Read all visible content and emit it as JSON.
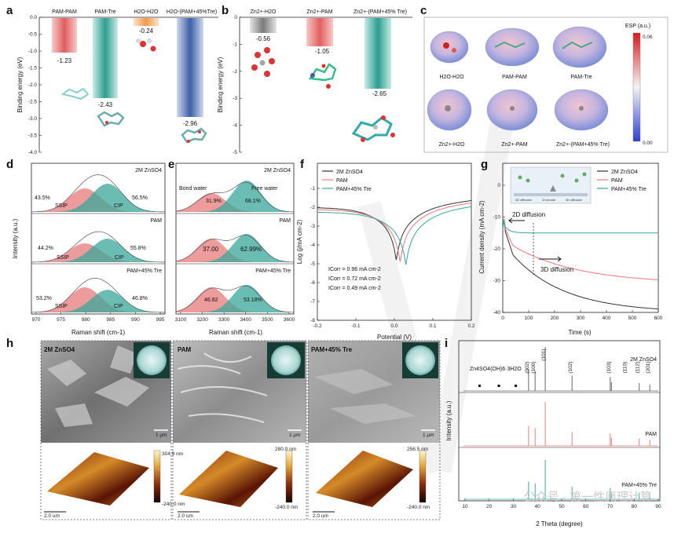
{
  "panel_letters": [
    "a",
    "b",
    "c",
    "d",
    "e",
    "f",
    "g",
    "h",
    "i"
  ],
  "colors": {
    "red": "#e8797b",
    "teal": "#3aa79a",
    "blue": "#3b5fa8",
    "orange": "#f2994a",
    "gray": "#8c8c8c",
    "dark": "#333333"
  },
  "watermark": "公众号 · 第一性原理计算",
  "panel_a": {
    "ylabel": "Binding energy (eV)",
    "yticks": [
      "0.0",
      "-0.5",
      "-1.0",
      "-1.5",
      "-2.0",
      "-2.5",
      "-3.0",
      "-3.5",
      "-4.0"
    ],
    "labels": [
      "PAM-PAM",
      "PAM-Tre",
      "H2O-H2O",
      "H2O-(PAM+45%Tre)"
    ],
    "values": [
      "-1.23",
      "-2.43",
      "-0.24",
      "-2.96"
    ]
  },
  "panel_b": {
    "ylabel": "Binding energy (eV)",
    "yticks": [
      "0",
      "-1",
      "-2",
      "-3",
      "-4",
      "-5"
    ],
    "labels": [
      "Zn2+-H2O",
      "Zn2+-PAM",
      "Zn2+-(PAM+45% Tre)"
    ],
    "values": [
      "-0.56",
      "-1.05",
      "-2.65"
    ]
  },
  "panel_c": {
    "colorbar_title": "ESP (a.u.)",
    "colorbar_max": "0.06",
    "colorbar_min": "0.00",
    "labels": [
      "H2O-H2O",
      "PAM-PAM",
      "PAM-Tre",
      "Zn2+-H2O",
      "Zn2+-PAM",
      "Zn2+-(PAM+45% Tre)"
    ]
  },
  "panel_d": {
    "ylabel": "Intensity (a.u.)",
    "xlabel": "Raman shift (cm-1)",
    "xticks": [
      "970",
      "975",
      "980",
      "985",
      "990",
      "995"
    ],
    "rows": [
      {
        "name": "2M ZnSO4",
        "left": "43.5%",
        "right": "56.5%",
        "ltag": "SSIP",
        "rtag": "CIP"
      },
      {
        "name": "PAM",
        "left": "44.2%",
        "right": "55.8%",
        "ltag": "SSIP",
        "rtag": "CIP"
      },
      {
        "name": "PAM+45% Tre",
        "left": "53.2%",
        "right": "46.8%",
        "ltag": "SSIP",
        "rtag": "CIP"
      }
    ]
  },
  "panel_e": {
    "xlabel": "Raman shift (cm-1)",
    "xticks": [
      "3100",
      "3200",
      "3300",
      "3400",
      "3500",
      "3600"
    ],
    "tag_left": "Bond water",
    "tag_right": "Free water",
    "rows": [
      {
        "name": "2M ZnSO4",
        "left": "31.9%",
        "right": "68.1%"
      },
      {
        "name": "PAM",
        "left": "37.00",
        "right": "62.99%"
      },
      {
        "name": "PAM+45% Tre",
        "left": "46.82",
        "right": "53.18%"
      }
    ]
  },
  "panel_f": {
    "xlabel": "Potential (V)",
    "ylabel": "Log (j/mA cm-2)",
    "xticks": [
      "-0.2",
      "-0.1",
      "0.0",
      "0.1",
      "0.2"
    ],
    "yticks": [
      "-1",
      "-2",
      "-3",
      "-4",
      "-5",
      "-6",
      "-7",
      "-8"
    ],
    "legend": [
      "2M ZnSO4",
      "PAM",
      "PAM+45% Tre"
    ],
    "icorr": [
      "ICorr = 0.96 mA cm-2",
      "ICorr = 0.72 mA cm-2",
      "ICorr = 0.49 mA cm-2"
    ]
  },
  "panel_g": {
    "xlabel": "Time (s)",
    "ylabel": "Current density (mA cm-2)",
    "xticks": [
      "0",
      "100",
      "200",
      "300",
      "400",
      "500",
      "600"
    ],
    "yticks": [
      "0",
      "-10",
      "-20",
      "-30",
      "-40"
    ],
    "legend": [
      "2M ZnSO4",
      "PAM",
      "PAM+45% Tre"
    ],
    "ann_2d": "2D diffusion",
    "ann_3d": "3D diffusion",
    "inset": [
      "2D diffusion",
      "Zn Anode",
      "3D diffusion"
    ]
  },
  "panel_h": {
    "titles": [
      "2M ZnSO4",
      "PAM",
      "PAM+45% Tre"
    ],
    "scale_sem": "1 μm",
    "scale_afm": "2.0 um",
    "afm_max": [
      "304.9 nm",
      "280.0 nm",
      "256.5 nm"
    ],
    "afm_min": [
      "-240.0 nm",
      "-240.0 nm",
      "-240.0 nm"
    ]
  },
  "panel_i": {
    "xlabel": "2 Theta (degree)",
    "ylabel": "Intensity (a.u.)",
    "xticks": [
      "10",
      "20",
      "30",
      "40",
      "50",
      "60",
      "70",
      "80",
      "90"
    ],
    "phase": "Zn4SO4(OH)6·3H2O",
    "peaks": [
      "(002)",
      "(100)",
      "(101)",
      "(102)",
      "(103)",
      "(110)",
      "(112)",
      "(201)"
    ],
    "names": [
      "2M ZnSO4",
      "PAM",
      "PAM+45% Tre"
    ]
  }
}
